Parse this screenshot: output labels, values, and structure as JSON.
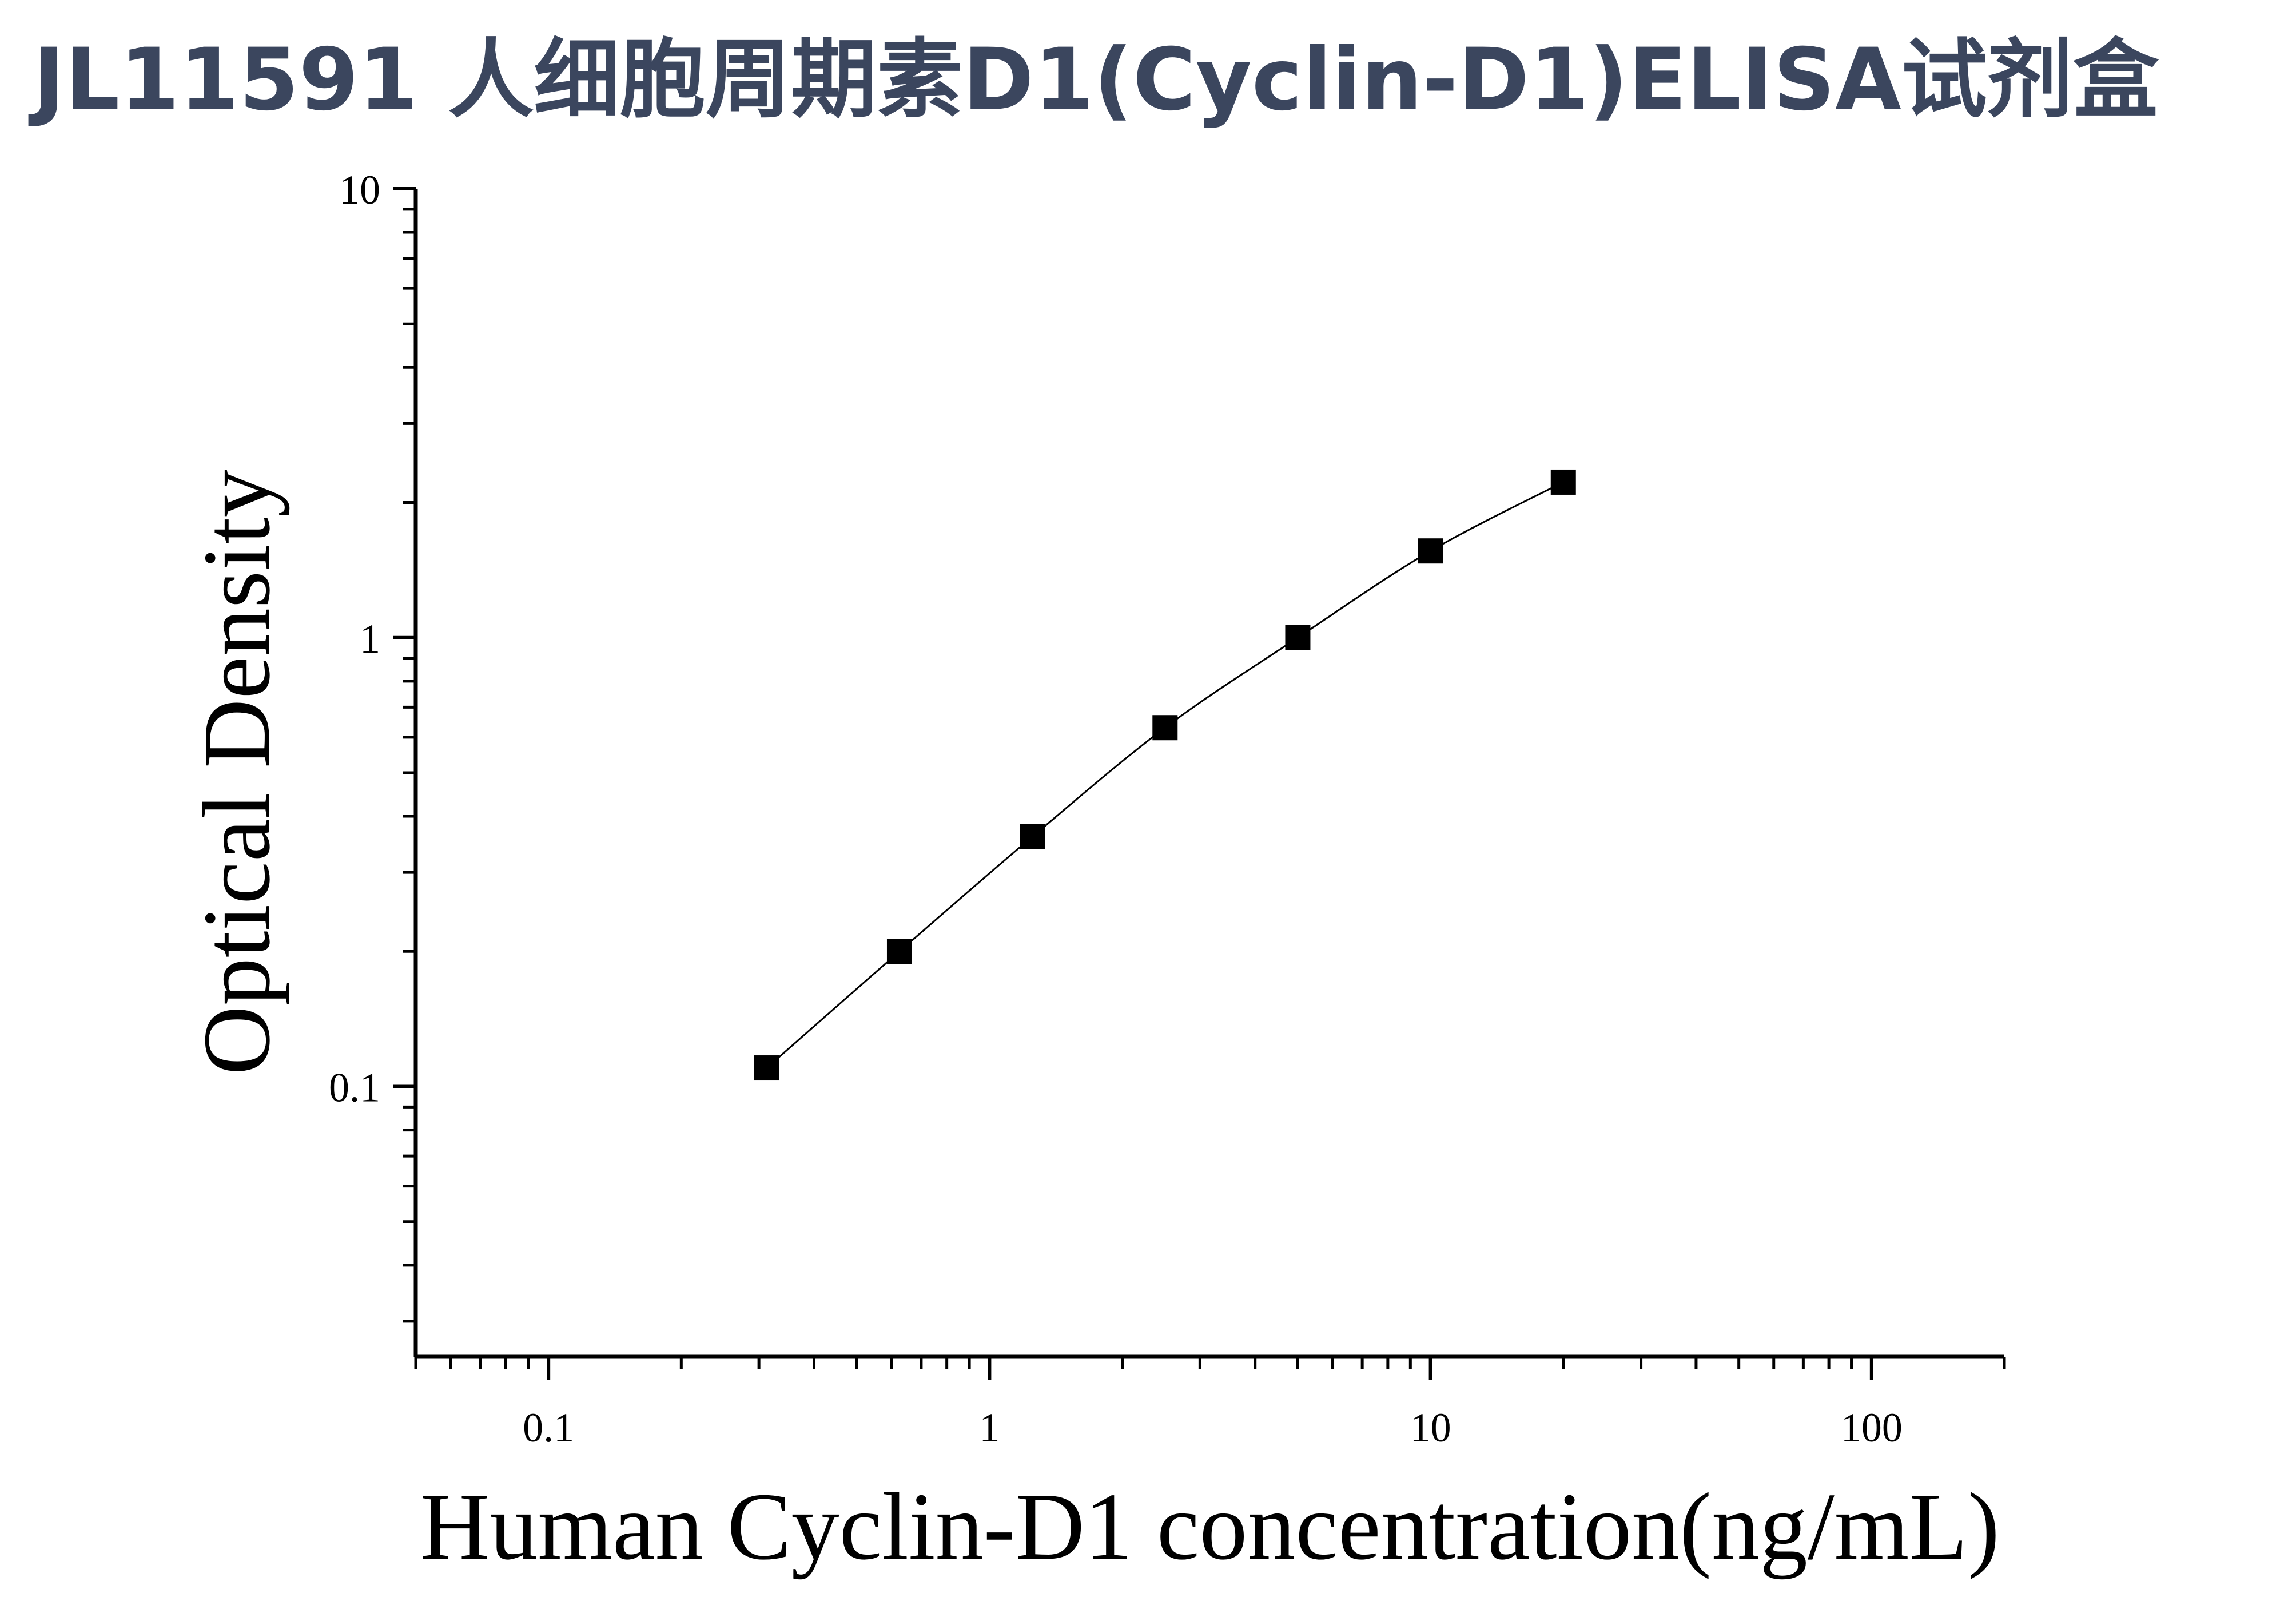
{
  "title": "JL11591 人细胞周期素D1(Cyclin-D1)ELISA试剂盒",
  "chart_data": {
    "type": "scatter",
    "xlabel": "Human Cyclin-D1 concentration(ng/mL)",
    "ylabel": "Optical Density",
    "xscale": "log",
    "yscale": "log",
    "xlim": [
      0.05,
      200
    ],
    "ylim": [
      0.025,
      10
    ],
    "x_ticks": [
      "0.1",
      "1",
      "10",
      "100"
    ],
    "y_ticks": [
      "0.1",
      "1",
      "10"
    ],
    "x_tick_values": [
      0.1,
      1,
      10,
      100
    ],
    "y_tick_values": [
      0.1,
      1,
      10
    ],
    "series": [
      {
        "marker": "square",
        "color": "#000000",
        "x": [
          0.3125,
          0.625,
          1.25,
          2.5,
          5,
          10,
          20
        ],
        "y": [
          0.11,
          0.2,
          0.36,
          0.63,
          1.0,
          1.56,
          2.22
        ]
      }
    ],
    "fit_curve": true,
    "grid": false,
    "legend": "none"
  }
}
